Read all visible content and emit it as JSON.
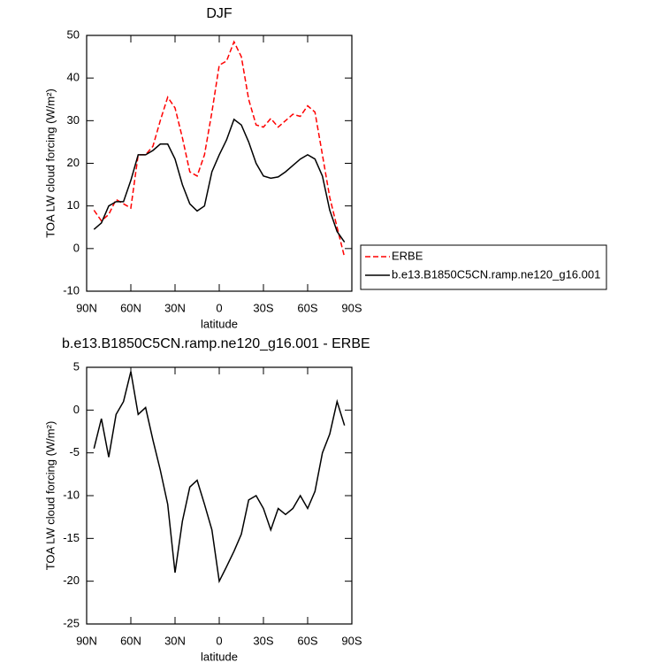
{
  "chart_data": [
    {
      "type": "line",
      "title": "DJF",
      "xlabel": "latitude",
      "ylabel": "TOA LW cloud forcing (W/m²)",
      "x": [
        85,
        80,
        75,
        70,
        65,
        60,
        55,
        50,
        45,
        40,
        35,
        30,
        25,
        20,
        15,
        10,
        5,
        0,
        -5,
        -10,
        -15,
        -20,
        -25,
        -30,
        -35,
        -40,
        -45,
        -50,
        -55,
        -60,
        -65,
        -70,
        -75,
        -80,
        -85
      ],
      "series": [
        {
          "name": "ERBE",
          "color": "#ff0000",
          "dashed": true,
          "values": [
            9,
            6.5,
            8,
            11.5,
            10.5,
            9.5,
            22,
            22,
            24,
            30,
            35.5,
            33,
            26,
            18,
            17,
            22,
            32,
            43,
            44,
            48.5,
            45,
            35,
            29,
            28.5,
            30.5,
            28.5,
            30,
            31.5,
            31,
            33.5,
            32,
            22,
            12,
            5,
            -2
          ]
        },
        {
          "name": "b.e13.B1850C5CN.ramp.ne120_g16.001",
          "color": "#000000",
          "dashed": false,
          "values": [
            4.5,
            6,
            10,
            11,
            11,
            16,
            22,
            22,
            23,
            24.5,
            24.5,
            21,
            15,
            10.5,
            8.8,
            10,
            18,
            22,
            25.5,
            30.3,
            29,
            25,
            20,
            17,
            16.5,
            16.8,
            18,
            19.5,
            21,
            22,
            21,
            17,
            9,
            4,
            1.5
          ]
        }
      ],
      "xlim": [
        90,
        -90
      ],
      "xticks": [
        {
          "value": 90,
          "label": "90N"
        },
        {
          "value": 60,
          "label": "60N"
        },
        {
          "value": 30,
          "label": "30N"
        },
        0,
        {
          "value": -30,
          "label": "30S"
        },
        {
          "value": -60,
          "label": "60S"
        },
        {
          "value": -90,
          "label": "90S"
        }
      ],
      "ylim": [
        -10,
        50
      ],
      "yticks": [
        -10,
        0,
        10,
        20,
        30,
        40,
        50
      ],
      "legend": "outside-right"
    },
    {
      "type": "line",
      "title": "b.e13.B1850C5CN.ramp.ne120_g16.001 - ERBE",
      "xlabel": "latitude",
      "ylabel": "TOA LW cloud forcing (W/m²)",
      "x": [
        85,
        80,
        75,
        70,
        65,
        60,
        55,
        50,
        45,
        40,
        35,
        30,
        25,
        20,
        15,
        10,
        5,
        0,
        -5,
        -10,
        -15,
        -20,
        -25,
        -30,
        -35,
        -40,
        -45,
        -50,
        -55,
        -60,
        -65,
        -70,
        -75,
        -80,
        -85
      ],
      "values": [
        -4.5,
        -1,
        -5.5,
        -0.5,
        1,
        4.5,
        -0.5,
        0.3,
        -3.5,
        -7,
        -11,
        -19,
        -13,
        -9,
        -8.2,
        -11,
        -14,
        -20,
        -18.3,
        -16.5,
        -14.5,
        -10.5,
        -10,
        -11.5,
        -14,
        -11.5,
        -12.2,
        -11.5,
        -10,
        -11.5,
        -9.5,
        -5,
        -2.8,
        1,
        -1.8
      ],
      "color": "#000000",
      "xlim": [
        90,
        -90
      ],
      "xticks": [
        {
          "value": 90,
          "label": "90N"
        },
        {
          "value": 60,
          "label": "60N"
        },
        {
          "value": 30,
          "label": "30N"
        },
        0,
        {
          "value": -30,
          "label": "30S"
        },
        {
          "value": -60,
          "label": "60S"
        },
        {
          "value": -90,
          "label": "90S"
        }
      ],
      "ylim": [
        -25,
        5
      ],
      "yticks": [
        -25,
        -20,
        -15,
        -10,
        -5,
        0,
        5
      ]
    }
  ]
}
